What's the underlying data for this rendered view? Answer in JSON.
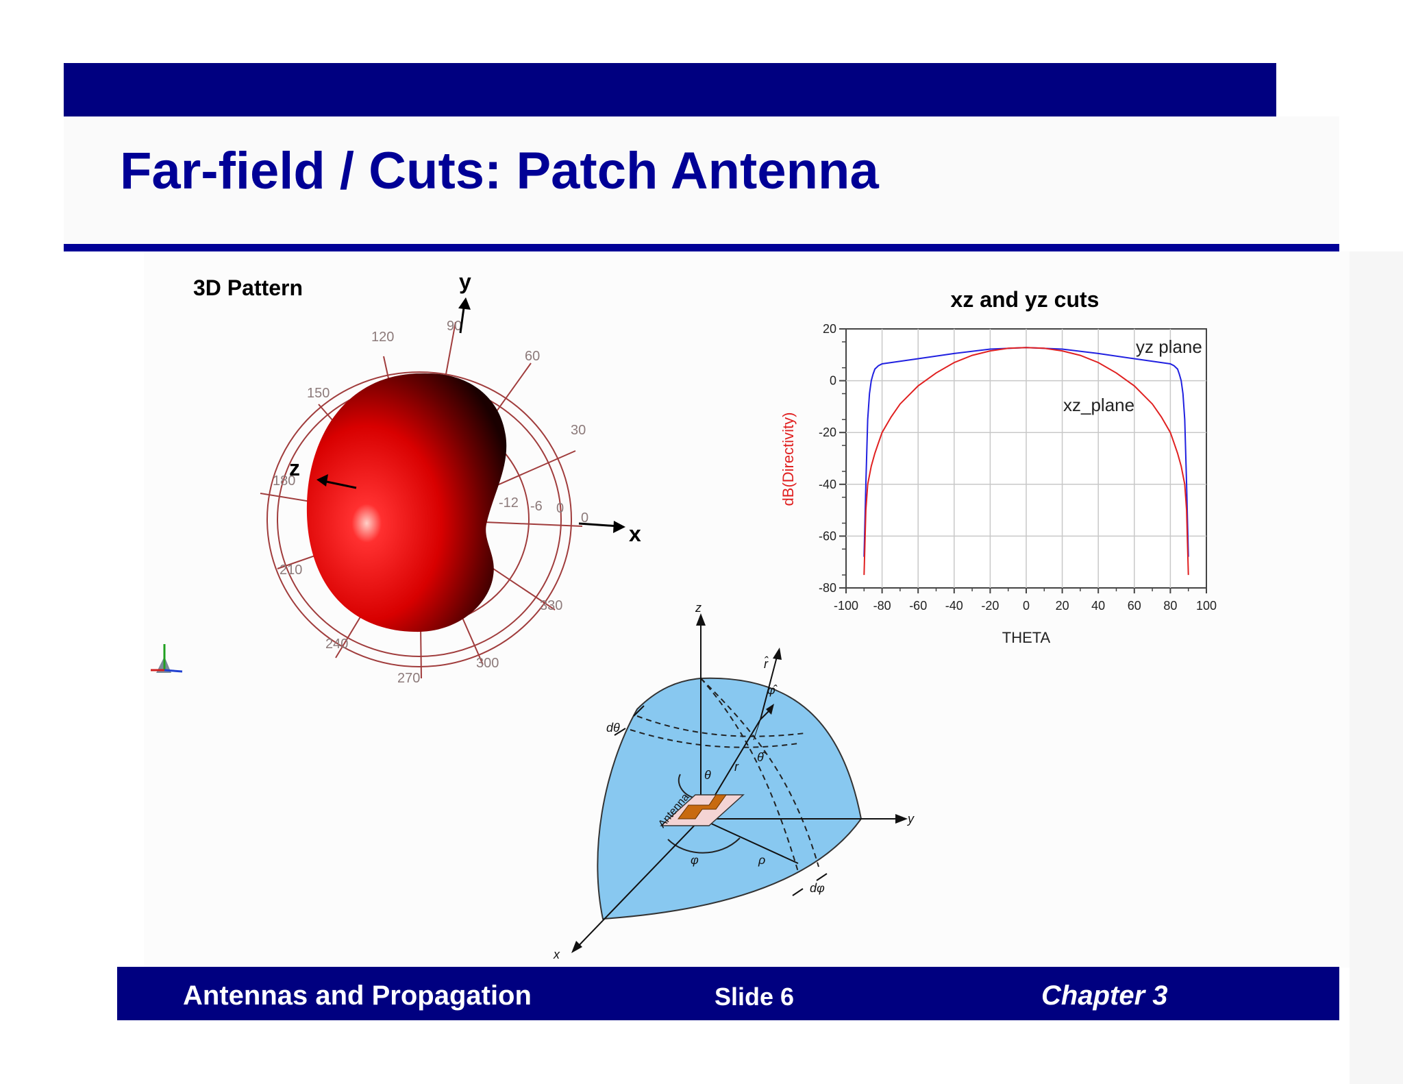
{
  "slide": {
    "title": "Far-field / Cuts: Patch Antenna",
    "footer_left": "Antennas and Propagation",
    "footer_center": "Slide 6",
    "footer_right": "Chapter 3",
    "colors": {
      "band": "#000080",
      "title": "#000096"
    }
  },
  "pattern3d": {
    "label": "3D Pattern",
    "axes": {
      "y": "y",
      "x": "x",
      "z": "z"
    },
    "angle_labels": [
      "90",
      "60",
      "30",
      "0",
      "330",
      "300",
      "270",
      "240",
      "210",
      "180",
      "150",
      "120"
    ],
    "radial_labels": [
      "-12",
      "-6",
      "0"
    ]
  },
  "chart_data": {
    "type": "line",
    "title": "xz and yz cuts",
    "xlabel": "THETA",
    "ylabel": "dB(Directivity)",
    "xlim": [
      -100,
      100
    ],
    "ylim": [
      -80,
      20
    ],
    "xticks": [
      "-100",
      "-80",
      "-60",
      "-40",
      "-20",
      "0",
      "20",
      "40",
      "60",
      "80",
      "100"
    ],
    "yticks": [
      "20",
      "0",
      "-20",
      "-40",
      "-60",
      "-80"
    ],
    "grid": true,
    "series": [
      {
        "name": "yz plane",
        "color": "#2020e0",
        "x": [
          -90,
          -89,
          -88,
          -87,
          -86,
          -85,
          -84,
          -82,
          -80,
          -70,
          -60,
          -40,
          -20,
          0,
          20,
          40,
          60,
          70,
          80,
          82,
          84,
          85,
          86,
          87,
          88,
          89,
          90
        ],
        "y": [
          -68,
          -40,
          -15,
          -5,
          0,
          2.5,
          4.5,
          5.8,
          6.5,
          7.5,
          8.5,
          10.5,
          12.2,
          12.8,
          12.2,
          10.5,
          8.5,
          7.5,
          6.5,
          5.8,
          4.5,
          2.5,
          0,
          -5,
          -15,
          -40,
          -68
        ]
      },
      {
        "name": "xz_plane",
        "color": "#e02020",
        "x": [
          -90,
          -89,
          -88,
          -86,
          -84,
          -82,
          -80,
          -75,
          -70,
          -60,
          -50,
          -40,
          -30,
          -20,
          -10,
          0,
          10,
          20,
          30,
          40,
          50,
          60,
          70,
          75,
          80,
          82,
          84,
          86,
          88,
          89,
          90
        ],
        "y": [
          -75,
          -50,
          -40,
          -33,
          -28,
          -24,
          -20,
          -14,
          -9,
          -2,
          3,
          7,
          9.8,
          11.5,
          12.5,
          12.8,
          12.5,
          11.5,
          9.8,
          7,
          3,
          -2,
          -9,
          -14,
          -20,
          -24,
          -28,
          -33,
          -40,
          -50,
          -75
        ]
      }
    ]
  },
  "diagram": {
    "axes": {
      "z": "z",
      "y": "y",
      "x": "x"
    },
    "labels": {
      "r_hat": "r̂",
      "phi_hat": "φ̂",
      "theta_hat": "θ̂",
      "d_theta": "dθ",
      "d_phi": "dφ",
      "theta": "θ",
      "r": "r",
      "phi": "φ",
      "rho": "ρ",
      "antenna": "Antenna"
    }
  }
}
